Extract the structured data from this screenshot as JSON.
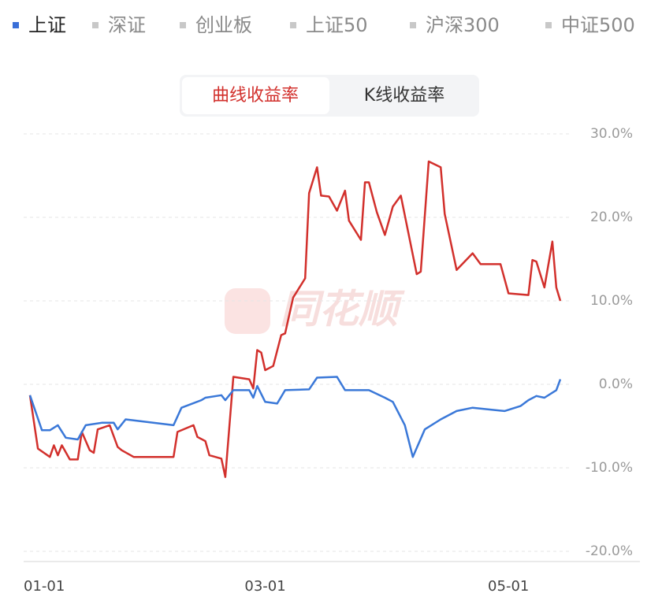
{
  "tabs": [
    "上证",
    "深证",
    "创业板",
    "上证50",
    "沪深300",
    "中证500"
  ],
  "toggle": [
    "曲线收益率",
    "K线收益率"
  ],
  "watermark": "同花顺",
  "chart_data": {
    "type": "line",
    "xlim": [
      0,
      133
    ],
    "ylim": [
      -20,
      30
    ],
    "xticks": [
      {
        "value": 0,
        "label": "01-01"
      },
      {
        "value": 59,
        "label": "03-01"
      },
      {
        "value": 120,
        "label": "05-01"
      }
    ],
    "yticks": [
      {
        "value": -20,
        "label": "-20.0%"
      },
      {
        "value": -10,
        "label": "-10.0%"
      },
      {
        "value": 0,
        "label": "0.0%"
      },
      {
        "value": 10,
        "label": "10.0%"
      },
      {
        "value": 20,
        "label": "20.0%"
      },
      {
        "value": 30,
        "label": "30.0%"
      }
    ],
    "grid": true,
    "series": [
      {
        "color": "#d2302c",
        "x": [
          0,
          2,
          5,
          6,
          7,
          8,
          10,
          12,
          13,
          15,
          16,
          17,
          20,
          22,
          23,
          26,
          36,
          37,
          41,
          42,
          44,
          45,
          48,
          49,
          51,
          55,
          56,
          57,
          58,
          59,
          61,
          63,
          64,
          66,
          69,
          70,
          72,
          73,
          75,
          77,
          79,
          80,
          83,
          84,
          85,
          87,
          89,
          91,
          93,
          97,
          98,
          100,
          103,
          104,
          107,
          111,
          113,
          118,
          120,
          125,
          126,
          127,
          129,
          131,
          132,
          133
        ],
        "values": [
          -1.3,
          -7.7,
          -8.7,
          -7.3,
          -8.5,
          -7.3,
          -9.0,
          -9.0,
          -5.7,
          -7.9,
          -8.2,
          -5.4,
          -4.9,
          -7.5,
          -7.9,
          -8.7,
          -8.7,
          -5.7,
          -4.9,
          -6.3,
          -6.8,
          -8.5,
          -8.9,
          -11.1,
          0.9,
          0.6,
          -0.5,
          4.1,
          3.8,
          1.7,
          2.2,
          5.9,
          6.1,
          10.4,
          12.7,
          22.9,
          26.0,
          22.6,
          22.5,
          20.8,
          23.2,
          19.6,
          17.3,
          24.2,
          24.2,
          20.6,
          17.9,
          21.3,
          22.6,
          13.2,
          13.5,
          26.7,
          26.0,
          20.4,
          13.7,
          15.7,
          14.4,
          14.4,
          10.9,
          10.7,
          14.9,
          14.7,
          11.6,
          17.1,
          11.6,
          10.0
        ]
      },
      {
        "color": "#3a78d8",
        "x": [
          0,
          3,
          5,
          7,
          9,
          12,
          14,
          18,
          21,
          22,
          24,
          36,
          38,
          43,
          44,
          48,
          49,
          51,
          55,
          56,
          57,
          59,
          62,
          64,
          70,
          72,
          77,
          79,
          85,
          89,
          91,
          94,
          96,
          99,
          103,
          107,
          111,
          119,
          123,
          125,
          127,
          129,
          132,
          133
        ],
        "values": [
          -1.3,
          -5.5,
          -5.5,
          -4.9,
          -6.4,
          -6.6,
          -4.9,
          -4.6,
          -4.6,
          -5.4,
          -4.2,
          -4.9,
          -2.8,
          -1.9,
          -1.6,
          -1.3,
          -1.9,
          -0.7,
          -0.7,
          -1.6,
          -0.2,
          -2.1,
          -2.3,
          -0.7,
          -0.6,
          0.8,
          0.9,
          -0.7,
          -0.7,
          -1.6,
          -2.1,
          -4.9,
          -8.7,
          -5.4,
          -4.2,
          -3.2,
          -2.8,
          -3.2,
          -2.6,
          -1.9,
          -1.4,
          -1.6,
          -0.7,
          0.6
        ]
      }
    ]
  }
}
